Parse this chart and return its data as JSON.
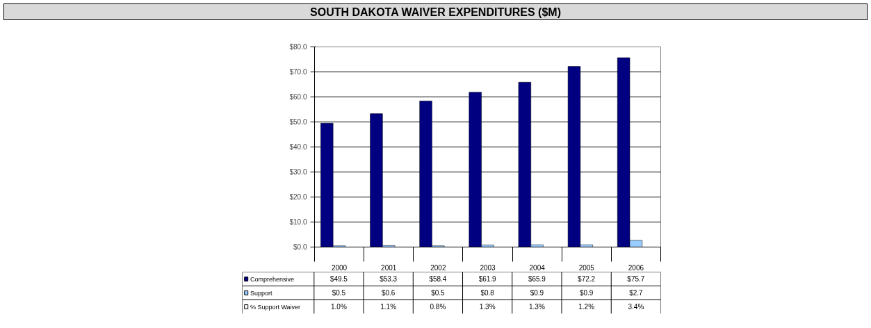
{
  "chart_data": {
    "type": "bar",
    "title": "SOUTH DAKOTA WAIVER EXPENDITURES ($M)",
    "categories": [
      "2000",
      "2001",
      "2002",
      "2003",
      "2004",
      "2005",
      "2006"
    ],
    "series": [
      {
        "name": "Comprehensive",
        "color": "#000080",
        "values": [
          49.5,
          53.3,
          58.4,
          61.9,
          65.9,
          72.2,
          75.7
        ],
        "value_labels": [
          "$49.5",
          "$53.3",
          "$58.4",
          "$61.9",
          "$65.9",
          "$72.2",
          "$75.7"
        ]
      },
      {
        "name": "Support",
        "color": "#99ccff",
        "values": [
          0.5,
          0.6,
          0.5,
          0.8,
          0.9,
          0.9,
          2.7
        ],
        "value_labels": [
          "$0.5",
          "$0.6",
          "$0.5",
          "$0.8",
          "$0.9",
          "$0.9",
          "$2.7"
        ]
      },
      {
        "name": "% Support Waiver",
        "color": "#ffffff",
        "values": [
          null,
          null,
          null,
          null,
          null,
          null,
          null
        ],
        "value_labels": [
          "1.0%",
          "1.1%",
          "0.8%",
          "1.3%",
          "1.3%",
          "1.2%",
          "3.4%"
        ]
      }
    ],
    "ylim": [
      0,
      80
    ],
    "yticks": [
      {
        "value": 0,
        "label": "$0.0"
      },
      {
        "value": 10,
        "label": "$10.0"
      },
      {
        "value": 20,
        "label": "$20.0"
      },
      {
        "value": 30,
        "label": "$30.0"
      },
      {
        "value": 40,
        "label": "$40.0"
      },
      {
        "value": 50,
        "label": "$50.0"
      },
      {
        "value": 60,
        "label": "$60.0"
      },
      {
        "value": 70,
        "label": "$70.0"
      },
      {
        "value": 80,
        "label": "$80.0"
      }
    ],
    "grid": "y",
    "legend": "bottom"
  }
}
